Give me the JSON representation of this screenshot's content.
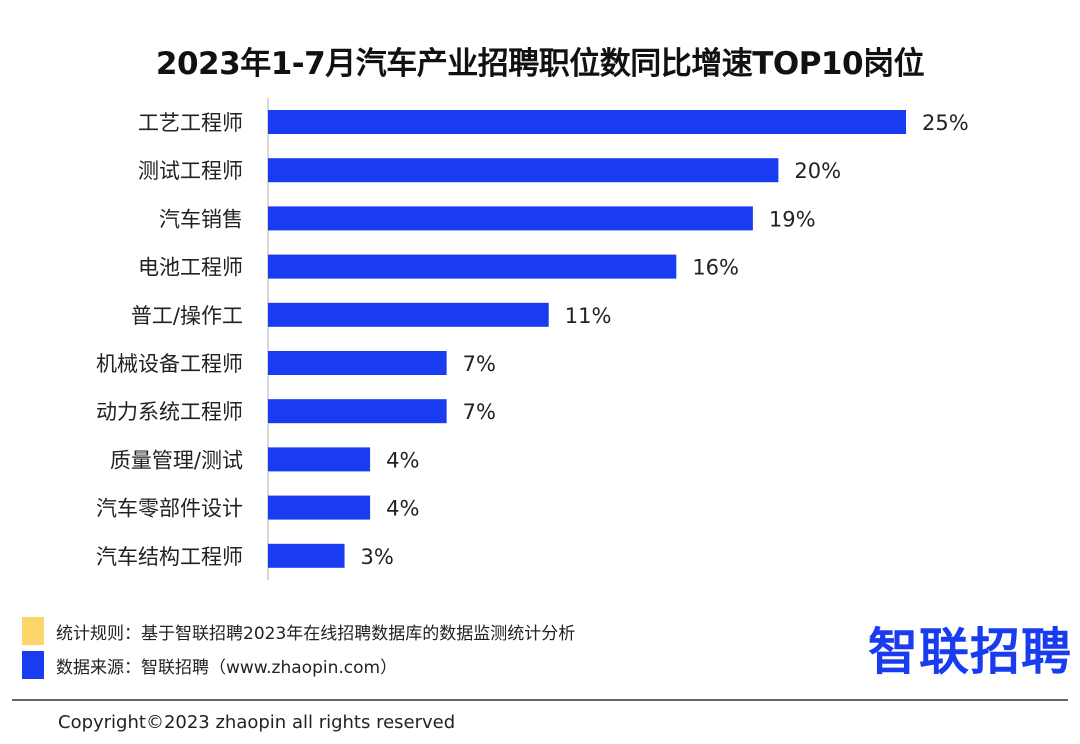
{
  "chart_data": {
    "type": "bar",
    "orientation": "horizontal",
    "title": "2023年1-7月汽车产业招聘职位数同比增速TOP10岗位",
    "categories": [
      "工艺工程师",
      "测试工程师",
      "汽车销售",
      "电池工程师",
      "普工/操作工",
      "机械设备工程师",
      "动力系统工程师",
      "质量管理/测试",
      "汽车零部件设计",
      "汽车结构工程师"
    ],
    "values": [
      25,
      20,
      19,
      16,
      11,
      7,
      7,
      4,
      4,
      3
    ],
    "data_labels": [
      "25%",
      "20%",
      "19%",
      "16%",
      "11%",
      "7%",
      "7%",
      "4%",
      "4%",
      "3%"
    ],
    "xlabel": "",
    "ylabel": "",
    "xlim": [
      0,
      25
    ],
    "grid": false,
    "bar_color": "#1a3cf0"
  },
  "legend": [
    {
      "text": "统计规则：基于智联招聘2023年在线招聘数据库的数据监测统计分析",
      "color": "#fcd56b"
    },
    {
      "text": "数据来源：智联招聘（www.zhaopin.com）",
      "color": "#1a3cf0"
    }
  ],
  "logo": "智联招聘",
  "copyright": "Copyright©2023 zhaopin all rights reserved"
}
